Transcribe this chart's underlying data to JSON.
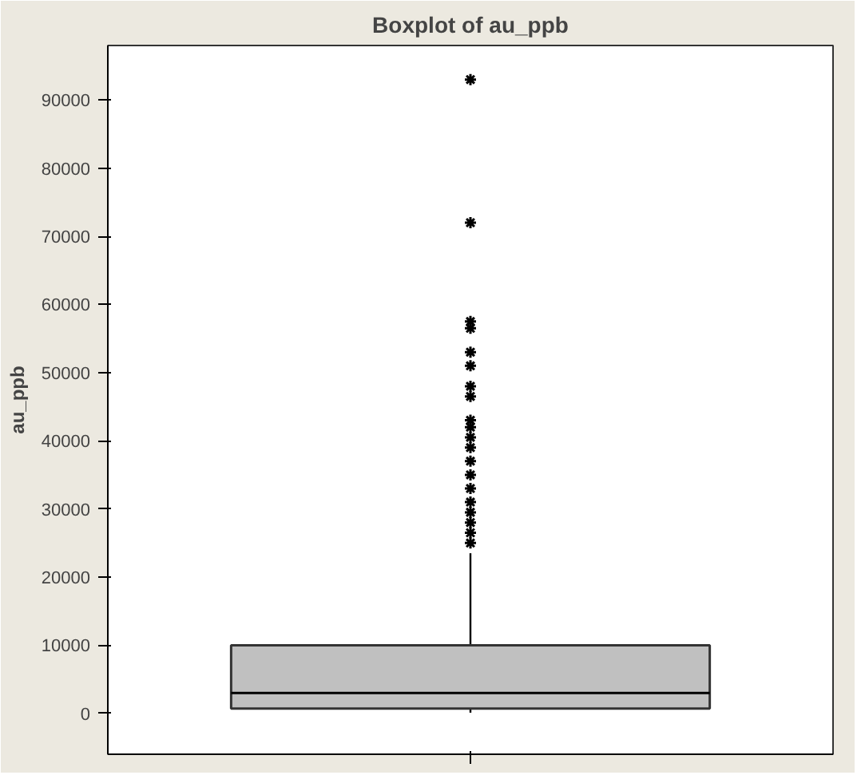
{
  "chart_data": {
    "type": "box",
    "title": "Boxplot of au_ppb",
    "ylabel": "au_ppb",
    "categories": [
      null
    ],
    "boxes": [
      {
        "low": 100,
        "q1": 700,
        "median": 3000,
        "q3": 10000,
        "high": 23500,
        "outliers": [
          25000,
          26500,
          28000,
          29500,
          31000,
          33000,
          35000,
          37000,
          39000,
          40500,
          42000,
          43000,
          46500,
          48000,
          51000,
          53000,
          56500,
          57500,
          72000,
          93000
        ]
      }
    ],
    "color": "#c0c0c0",
    "ylim": [
      -6000,
      98000
    ],
    "yticks": [
      0,
      10000,
      20000,
      30000,
      40000,
      50000,
      60000,
      70000,
      80000,
      90000
    ],
    "tick_labels": "y",
    "grid": false
  }
}
